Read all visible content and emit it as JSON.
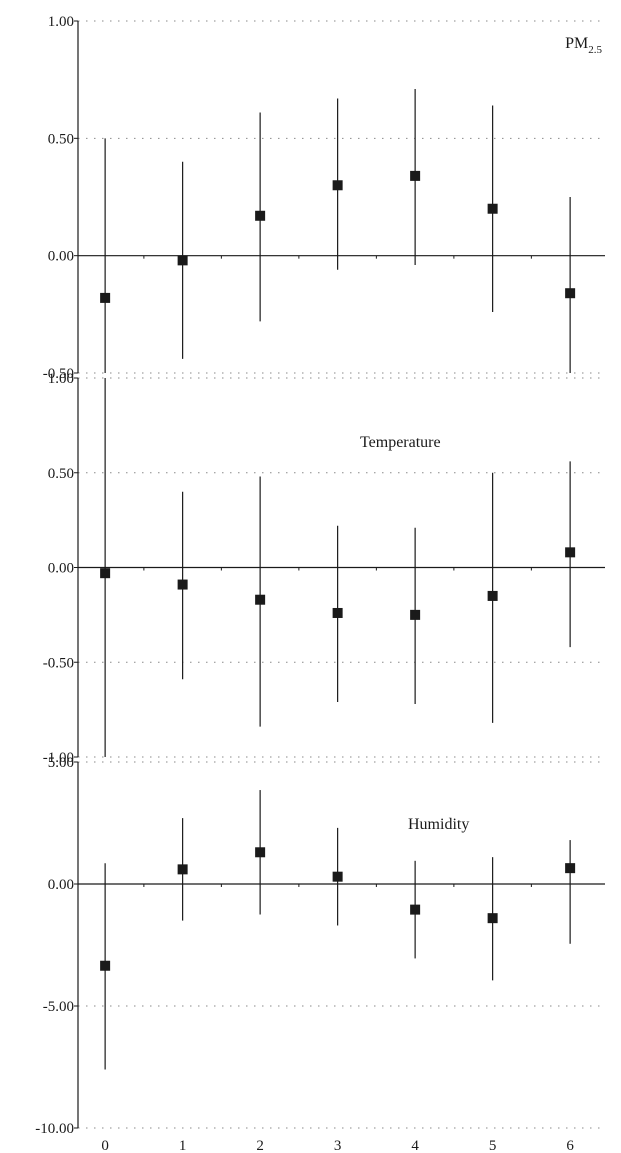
{
  "chart_data": [
    {
      "type": "scatter",
      "title": "PM",
      "title_subscript": "2.5",
      "x": [
        0,
        1,
        2,
        3,
        4,
        5,
        6
      ],
      "estimate": [
        -0.18,
        -0.02,
        0.17,
        0.3,
        0.34,
        0.2,
        -0.16
      ],
      "lower": [
        -0.5,
        -0.44,
        -0.28,
        -0.06,
        -0.04,
        -0.24,
        -0.5
      ],
      "upper": [
        0.5,
        0.4,
        0.61,
        0.67,
        0.71,
        0.64,
        0.25
      ],
      "ylim": [
        -0.5,
        1.0
      ],
      "yticks": [
        -0.5,
        0.0,
        0.5,
        1.0
      ],
      "ytick_labels": [
        "-0.50",
        "0.00",
        "0.50",
        "1.00"
      ],
      "grid": true
    },
    {
      "type": "scatter",
      "title": "Temperature",
      "x": [
        0,
        1,
        2,
        3,
        4,
        5,
        6
      ],
      "estimate": [
        -0.03,
        -0.09,
        -0.17,
        -0.24,
        -0.25,
        -0.15,
        0.08
      ],
      "lower": [
        -1.0,
        -0.59,
        -0.84,
        -0.71,
        -0.72,
        -0.82,
        -0.42
      ],
      "upper": [
        1.0,
        0.4,
        0.48,
        0.22,
        0.21,
        0.5,
        0.56
      ],
      "ylim": [
        -1.0,
        1.0
      ],
      "yticks": [
        -1.0,
        -0.5,
        0.0,
        0.5,
        1.0
      ],
      "ytick_labels": [
        "-1.00",
        "-0.50",
        "0.00",
        "0.50",
        "1.00"
      ],
      "grid": true
    },
    {
      "type": "scatter",
      "title": "Humidity",
      "x": [
        0,
        1,
        2,
        3,
        4,
        5,
        6
      ],
      "estimate": [
        -3.35,
        0.6,
        1.3,
        0.3,
        -1.05,
        -1.4,
        0.65
      ],
      "lower": [
        -7.6,
        -1.5,
        -1.25,
        -1.7,
        -3.05,
        -3.95,
        -2.45
      ],
      "upper": [
        0.85,
        2.7,
        3.85,
        2.3,
        0.95,
        1.1,
        1.8
      ],
      "ylim": [
        -10.0,
        5.0
      ],
      "yticks": [
        -10.0,
        -5.0,
        0.0,
        5.0
      ],
      "ytick_labels": [
        "-10.00",
        "-5.00",
        "0.00",
        "5.00"
      ],
      "xtick_labels": [
        "0",
        "1",
        "2",
        "3",
        "4",
        "5",
        "6"
      ],
      "grid": true
    }
  ]
}
